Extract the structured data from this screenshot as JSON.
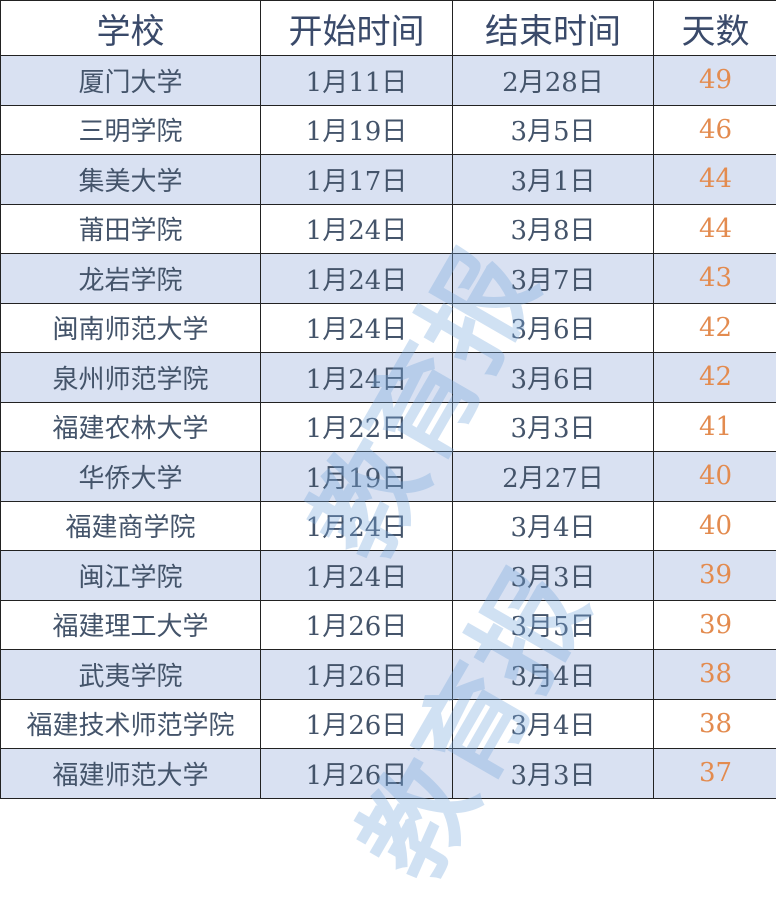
{
  "headers": [
    "学校",
    "开始时间",
    "结束时间",
    "天数"
  ],
  "rows": [
    [
      "厦门大学",
      "1月11日",
      "2月28日",
      "49"
    ],
    [
      "三明学院",
      "1月19日",
      "3月5日",
      "46"
    ],
    [
      "集美大学",
      "1月17日",
      "3月1日",
      "44"
    ],
    [
      "莆田学院",
      "1月24日",
      "3月8日",
      "44"
    ],
    [
      "龙岩学院",
      "1月24日",
      "3月7日",
      "43"
    ],
    [
      "闽南师范大学",
      "1月24日",
      "3月6日",
      "42"
    ],
    [
      "泉州师范学院",
      "1月24日",
      "3月6日",
      "42"
    ],
    [
      "福建农林大学",
      "1月22日",
      "3月3日",
      "41"
    ],
    [
      "华侨大学",
      "1月19日",
      "2月27日",
      "40"
    ],
    [
      "福建商学院",
      "1月24日",
      "3月4日",
      "40"
    ],
    [
      "闽江学院",
      "1月24日",
      "3月3日",
      "39"
    ],
    [
      "福建理工大学",
      "1月26日",
      "3月5日",
      "39"
    ],
    [
      "武夷学院",
      "1月26日",
      "3月4日",
      "38"
    ],
    [
      "福建技术师范学院",
      "1月26日",
      "3月4日",
      "38"
    ],
    [
      "福建师范大学",
      "1月26日",
      "3月3日",
      "37"
    ]
  ],
  "watermark": "教育报",
  "colors": {
    "band": "#d9e1f2",
    "text": "#44546a",
    "days": "#e38b4f"
  }
}
